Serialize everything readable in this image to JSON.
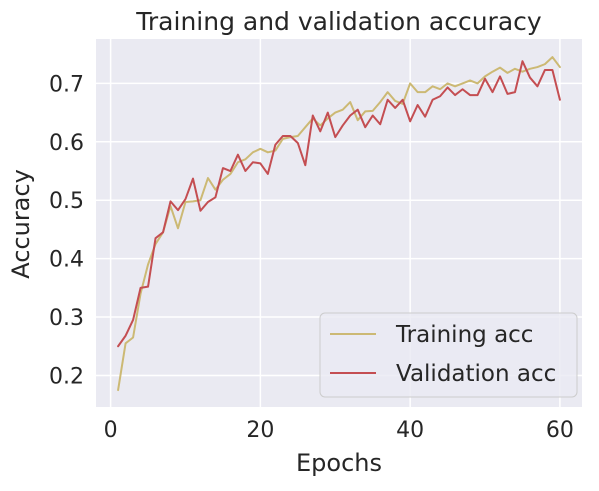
{
  "chart_data": {
    "type": "line",
    "title": "Training and validation accuracy",
    "xlabel": "Epochs",
    "ylabel": "Accuracy",
    "xlim": [
      -1.95,
      62.95
    ],
    "ylim": [
      0.146,
      0.776
    ],
    "xticks": [
      0,
      20,
      40,
      60
    ],
    "yticks": [
      0.2,
      0.3,
      0.4,
      0.5,
      0.6,
      0.7
    ],
    "xtick_labels": [
      "0",
      "20",
      "40",
      "60"
    ],
    "ytick_labels": [
      "0.2",
      "0.3",
      "0.4",
      "0.5",
      "0.6",
      "0.7"
    ],
    "grid": true,
    "legend_position": "lower-right",
    "x": [
      1,
      2,
      3,
      4,
      5,
      6,
      7,
      8,
      9,
      10,
      11,
      12,
      13,
      14,
      15,
      16,
      17,
      18,
      19,
      20,
      21,
      22,
      23,
      24,
      25,
      26,
      27,
      28,
      29,
      30,
      31,
      32,
      33,
      34,
      35,
      36,
      37,
      38,
      39,
      40,
      41,
      42,
      43,
      44,
      45,
      46,
      47,
      48,
      49,
      50,
      51,
      52,
      53,
      54,
      55,
      56,
      57,
      58,
      59,
      60
    ],
    "series": [
      {
        "name": "Training acc",
        "color": "#ccb974",
        "values": [
          0.175,
          0.255,
          0.265,
          0.34,
          0.39,
          0.425,
          0.445,
          0.49,
          0.452,
          0.497,
          0.498,
          0.5,
          0.538,
          0.518,
          0.535,
          0.545,
          0.565,
          0.57,
          0.582,
          0.588,
          0.582,
          0.585,
          0.605,
          0.608,
          0.61,
          0.625,
          0.64,
          0.628,
          0.64,
          0.65,
          0.655,
          0.668,
          0.637,
          0.652,
          0.653,
          0.668,
          0.685,
          0.67,
          0.665,
          0.7,
          0.685,
          0.685,
          0.695,
          0.69,
          0.7,
          0.695,
          0.7,
          0.705,
          0.7,
          0.712,
          0.72,
          0.727,
          0.718,
          0.725,
          0.72,
          0.725,
          0.728,
          0.733,
          0.745,
          0.728
        ]
      },
      {
        "name": "Validation acc",
        "color": "#c44e52",
        "values": [
          0.25,
          0.268,
          0.295,
          0.35,
          0.352,
          0.435,
          0.445,
          0.498,
          0.483,
          0.502,
          0.537,
          0.482,
          0.497,
          0.505,
          0.555,
          0.55,
          0.578,
          0.55,
          0.565,
          0.563,
          0.545,
          0.595,
          0.61,
          0.61,
          0.598,
          0.56,
          0.645,
          0.618,
          0.65,
          0.608,
          0.628,
          0.645,
          0.655,
          0.625,
          0.645,
          0.63,
          0.672,
          0.658,
          0.672,
          0.635,
          0.663,
          0.643,
          0.672,
          0.678,
          0.693,
          0.68,
          0.69,
          0.68,
          0.68,
          0.708,
          0.685,
          0.712,
          0.682,
          0.685,
          0.738,
          0.71,
          0.695,
          0.723,
          0.723,
          0.672
        ]
      }
    ]
  }
}
